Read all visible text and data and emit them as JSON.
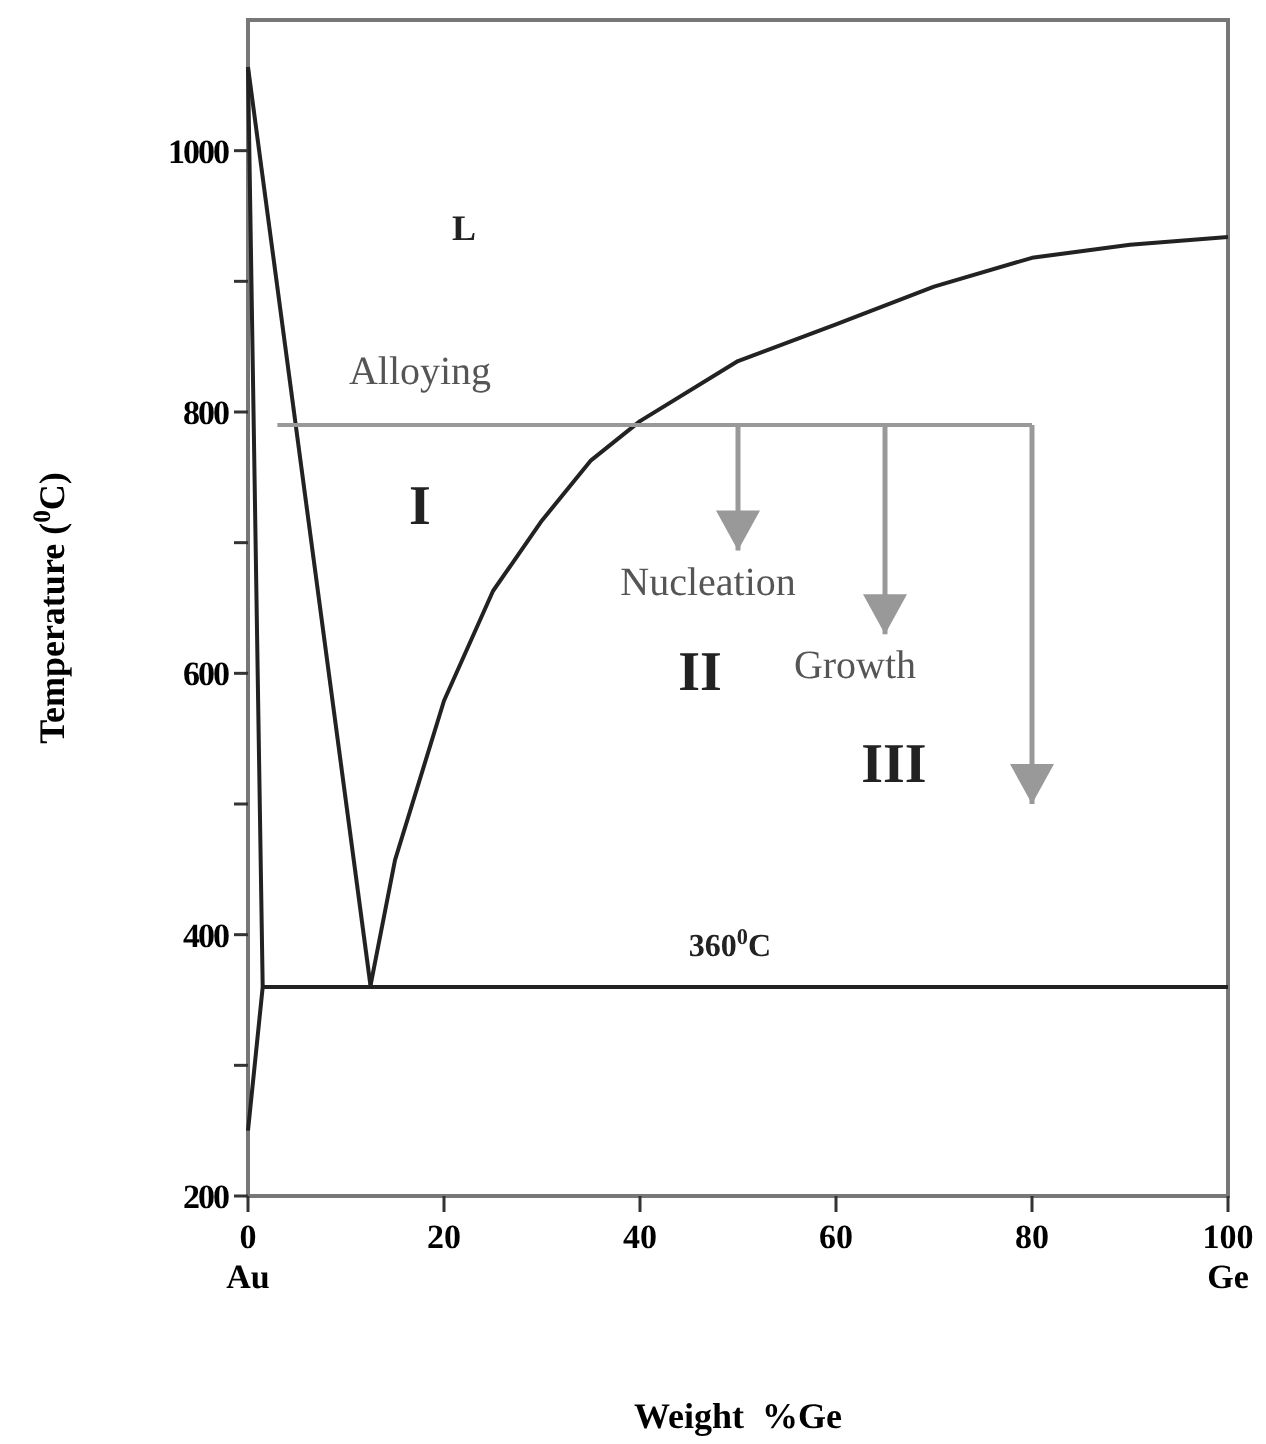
{
  "chart_data": {
    "type": "line",
    "xlabel": "Weight  %Ge",
    "ylabel": "Temperature ($^{0}$C)",
    "xlim": [
      0,
      100
    ],
    "ylim": [
      200,
      1100
    ],
    "xticks": [
      {
        "value": 0,
        "label": "0\nAu"
      },
      20,
      40,
      60,
      80,
      {
        "value": 100,
        "label": "100\nGe"
      }
    ],
    "yticks": [
      200,
      {
        "value": 300,
        "label": null
      },
      400,
      {
        "value": 500,
        "label": null
      },
      600,
      {
        "value": 700,
        "label": null
      },
      800,
      {
        "value": 900,
        "label": null
      },
      1000
    ],
    "grid": false,
    "marker": "none",
    "line_style": "solid",
    "series": [
      {
        "color": "#222222",
        "x": [
          0,
          12.5
        ],
        "values": [
          1064,
          361
        ]
      },
      {
        "color": "#222222",
        "x": [
          12.5,
          15,
          20,
          25,
          30,
          35,
          40,
          50,
          60,
          70,
          80,
          90,
          100
        ],
        "values": [
          361,
          457,
          579,
          663,
          717,
          763,
          793,
          839,
          867,
          896,
          918,
          928,
          934
        ]
      },
      {
        "color": "#222222",
        "x": [
          0,
          1.5,
          0
        ],
        "values": [
          1064,
          360,
          250
        ]
      },
      {
        "color": "#222222",
        "x": [
          1.5,
          100
        ],
        "values": [
          360,
          360
        ]
      },
      {
        "color": "#999999",
        "x": [
          3,
          80
        ],
        "values": [
          790,
          790
        ]
      },
      {
        "color": "#999999",
        "x": [
          50,
          50
        ],
        "values": [
          790,
          694
        ]
      },
      {
        "color": "#999999",
        "x": [
          65,
          65
        ],
        "values": [
          790,
          630
        ]
      },
      {
        "color": "#999999",
        "x": [
          80,
          80
        ],
        "values": [
          790,
          500
        ]
      }
    ],
    "annotations": [
      "L",
      "Alloying",
      "I",
      {
        "text": "Nucleation",
        "x": 50,
        "y": 694
      },
      "II",
      {
        "text": "Growth",
        "x": 65,
        "y": 630
      },
      "III",
      "360$^{0}$C"
    ]
  }
}
